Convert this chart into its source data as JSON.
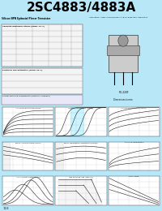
{
  "title": "2SC4883/4883A",
  "title_bg": "#00FFFF",
  "title_color": "#000000",
  "page_bg": "#B8E8F8",
  "body_bg": "#FFFFFF",
  "graph_bg": "#FFFFFF",
  "grid_color": "#BBBBBB",
  "line_color": "#333333",
  "page_number": "118",
  "graph_titles": [
    "Ic vs Vce Characteristics (Typical)",
    "Vce(sat) Characteristics (Typical)",
    "Ic vs hFE Characteristics (Typical)",
    "hFE vs Ic Characteristics (Typical)",
    "hFE vs Temperature Characteristics(Typical)",
    "Cj vs VCB Characteristics",
    "Ic vs Ic Characteristics (Typical)",
    "Safe Operating Area (Safe Area)",
    "VCE vs Tamb"
  ]
}
